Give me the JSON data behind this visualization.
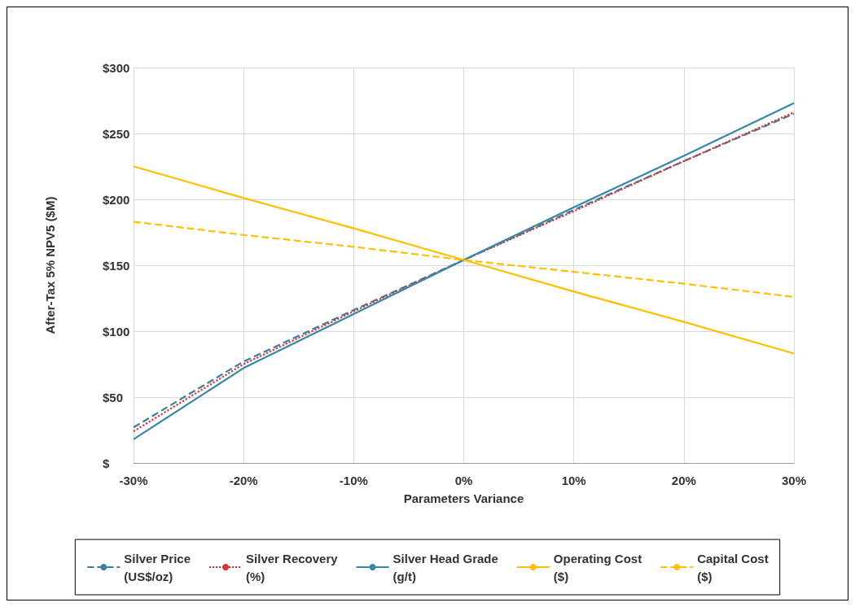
{
  "chart_data": {
    "type": "line",
    "xlabel": "Parameters Variance",
    "ylabel": "After-Tax 5% NPV5 ($M)",
    "x": [
      -30,
      -20,
      -10,
      0,
      10,
      20,
      30
    ],
    "series": [
      {
        "name": "Silver Price\n(US$/oz)",
        "color": "#3b7ea1",
        "line_style": "dashed",
        "values": [
          27,
          77,
          116,
          154,
          192,
          229,
          265
        ]
      },
      {
        "name": "Silver Recovery\n(%)",
        "color": "#e03030",
        "line_style": "dotted",
        "values": [
          24,
          75,
          115,
          154,
          191,
          229,
          266
        ]
      },
      {
        "name": "Silver Head Grade\n(g/t)",
        "color": "#3589a6",
        "line_style": "solid",
        "values": [
          18,
          72,
          113,
          154,
          194,
          233,
          273
        ]
      },
      {
        "name": "Operating Cost\n($)",
        "color": "#ffc000",
        "line_style": "solid",
        "values": [
          225,
          201,
          178,
          154,
          130,
          107,
          83
        ]
      },
      {
        "name": "Capital Cost\n($)",
        "color": "#ffc000",
        "line_style": "dashed",
        "values": [
          183,
          173,
          164,
          154,
          145,
          136,
          126
        ]
      }
    ],
    "xlim": [
      -30,
      30
    ],
    "xticks": [
      {
        "value": -30,
        "label": "-30%"
      },
      {
        "value": -20,
        "label": "-20%"
      },
      {
        "value": -10,
        "label": "-10%"
      },
      {
        "value": 0,
        "label": "0%"
      },
      {
        "value": 10,
        "label": "10%"
      },
      {
        "value": 20,
        "label": "20%"
      },
      {
        "value": 30,
        "label": "30%"
      }
    ],
    "ylim": [
      0,
      300
    ],
    "yticks": [
      {
        "value": 0,
        "label": "$"
      },
      {
        "value": 50,
        "label": "$50"
      },
      {
        "value": 100,
        "label": "$100"
      },
      {
        "value": 150,
        "label": "$150"
      },
      {
        "value": 200,
        "label": "$200"
      },
      {
        "value": 250,
        "label": "$250"
      },
      {
        "value": 300,
        "label": "$300"
      }
    ],
    "grid": true,
    "legend": "bottom",
    "marker": "none"
  }
}
